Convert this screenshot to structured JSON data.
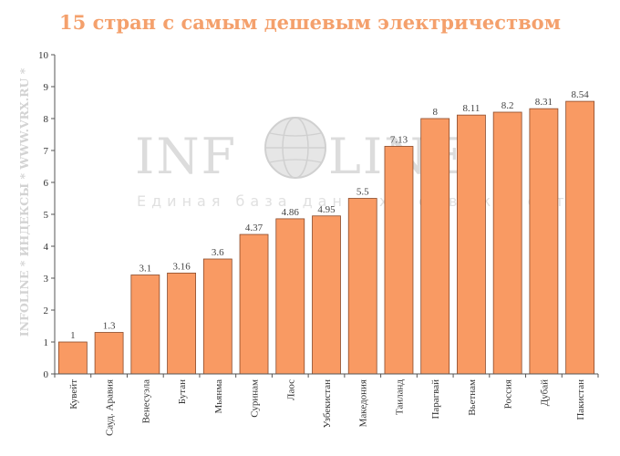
{
  "chart_data": {
    "type": "bar",
    "title": "15 стран с самым дешевым электричеством",
    "categories": [
      "Кувейт",
      "Сауд. Аравия",
      "Венесуэла",
      "Бутан",
      "Мьянма",
      "Суринам",
      "Лаос",
      "Узбекистан",
      "Македония",
      "Таиланд",
      "Парагвай",
      "Вьетнам",
      "Россия",
      "Дубай",
      "Пакистан"
    ],
    "values": [
      1,
      1.3,
      3.1,
      3.16,
      3.6,
      4.37,
      4.86,
      4.95,
      5.5,
      7.13,
      8,
      8.11,
      8.2,
      8.31,
      8.54
    ],
    "value_labels": [
      "1",
      "1.3",
      "3.1",
      "3.16",
      "3.6",
      "4.37",
      "4.86",
      "4.95",
      "5.5",
      "7.13",
      "8",
      "8.11",
      "8.2",
      "8.31",
      "8.54"
    ],
    "ylim": [
      0,
      10
    ],
    "yticks": [
      0,
      1,
      2,
      3,
      4,
      5,
      6,
      7,
      8,
      9,
      10
    ],
    "grid": false,
    "legend": "none",
    "bar_color": "#f99a63",
    "bar_edge_color": "#8a4a2a"
  },
  "side_caption": "INFOLINE * ИНДЕКСЫ * WWW.VRX.RU *",
  "watermark": {
    "logo_left": "INF",
    "logo_right": "LINE",
    "registered": "®",
    "tagline": "Единая база данных недвижимости"
  }
}
